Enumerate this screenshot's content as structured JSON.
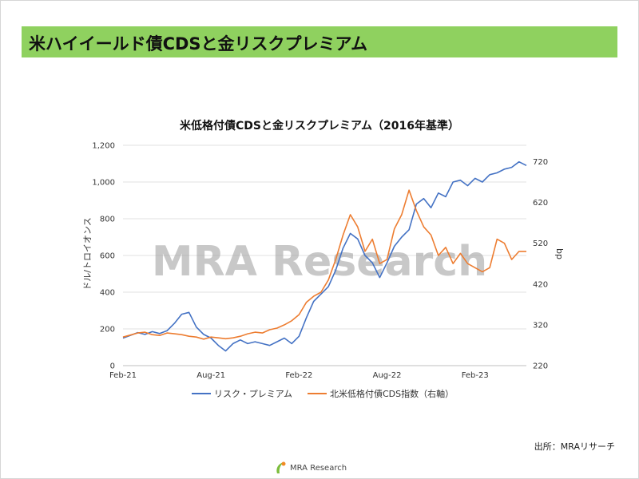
{
  "page": {
    "title": "米ハイイールド債CDSと金リスクプレミアム",
    "source": "出所：MRAリサーチ",
    "footer_brand": "MRA Research",
    "watermark": "MRA Research",
    "banner_color": "#8fd15f"
  },
  "chart_data": {
    "type": "line",
    "title": "米低格付債CDSと金リスクプレミアム（2016年基準）",
    "ylabel": "ドル/トロイオンス",
    "y2label": "bp",
    "ylim": [
      0,
      1200
    ],
    "y2lim": [
      220,
      760
    ],
    "yticks": [
      "0",
      "200",
      "400",
      "600",
      "800",
      "1,000",
      "1,200"
    ],
    "y2ticks": [
      "220",
      "320",
      "420",
      "520",
      "620",
      "720"
    ],
    "xticks": [
      "Feb-21",
      "Aug-21",
      "Feb-22",
      "Aug-22",
      "Feb-23"
    ],
    "xlim": [
      0,
      27.5
    ],
    "grid": "horizontal",
    "legend_position": "bottom",
    "colors": {
      "risk_premium": "#4472c4",
      "cds": "#ed7d31"
    },
    "series": [
      {
        "name": "リスク・プレミアム",
        "axis": "left",
        "x": [
          0,
          0.5,
          1,
          1.5,
          2,
          2.5,
          3,
          3.5,
          4,
          4.5,
          5,
          5.5,
          6,
          6.5,
          7,
          7.5,
          8,
          8.5,
          9,
          9.5,
          10,
          10.5,
          11,
          11.5,
          12,
          12.5,
          13,
          13.5,
          14,
          14.5,
          15,
          15.5,
          16,
          16.5,
          17,
          17.5,
          18,
          18.5,
          19,
          19.5,
          20,
          20.5,
          21,
          21.5,
          22,
          22.5,
          23,
          23.5,
          24,
          24.5,
          25,
          25.5,
          26,
          26.5,
          27,
          27.5
        ],
        "values": [
          150,
          165,
          180,
          170,
          185,
          175,
          190,
          230,
          280,
          290,
          210,
          170,
          150,
          110,
          80,
          120,
          140,
          120,
          130,
          120,
          110,
          130,
          150,
          120,
          160,
          260,
          350,
          390,
          430,
          520,
          640,
          720,
          690,
          600,
          560,
          480,
          560,
          650,
          700,
          740,
          880,
          910,
          860,
          940,
          920,
          1000,
          1010,
          980,
          1020,
          1000,
          1040,
          1050,
          1070,
          1080,
          1110,
          1090
        ]
      },
      {
        "name": "北米低格付債CDS指数（右軸）",
        "axis": "right",
        "x": [
          0,
          0.5,
          1,
          1.5,
          2,
          2.5,
          3,
          3.5,
          4,
          4.5,
          5,
          5.5,
          6,
          6.5,
          7,
          7.5,
          8,
          8.5,
          9,
          9.5,
          10,
          10.5,
          11,
          11.5,
          12,
          12.5,
          13,
          13.5,
          14,
          14.5,
          15,
          15.5,
          16,
          16.5,
          17,
          17.5,
          18,
          18.5,
          19,
          19.5,
          20,
          20.5,
          21,
          21.5,
          22,
          22.5,
          23,
          23.5,
          24,
          24.5,
          25,
          25.5,
          26,
          26.5,
          27,
          27.5
        ],
        "values": [
          290,
          295,
          300,
          302,
          296,
          294,
          300,
          298,
          296,
          292,
          290,
          285,
          290,
          288,
          286,
          288,
          292,
          298,
          302,
          300,
          308,
          312,
          320,
          330,
          345,
          375,
          390,
          400,
          430,
          480,
          540,
          590,
          560,
          500,
          530,
          470,
          480,
          555,
          590,
          650,
          600,
          560,
          540,
          490,
          510,
          470,
          495,
          470,
          460,
          450,
          460,
          530,
          520,
          480,
          500,
          500
        ]
      }
    ]
  }
}
